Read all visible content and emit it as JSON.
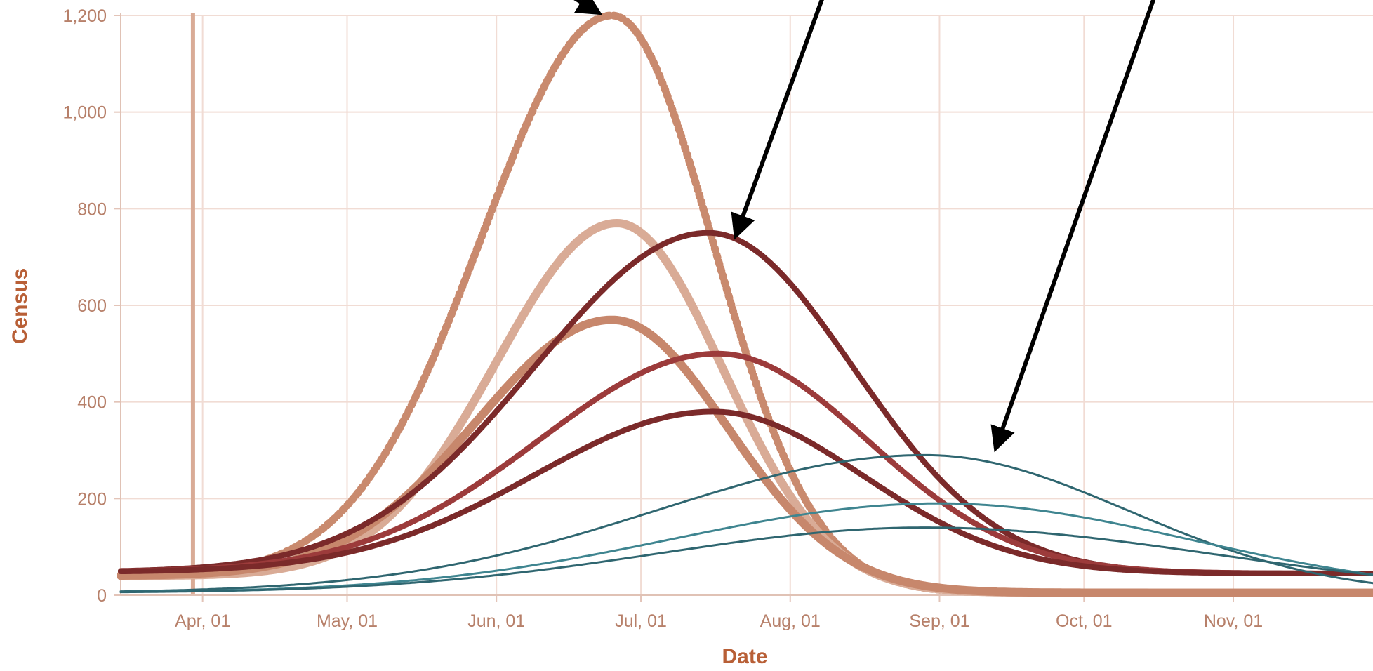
{
  "chart_data": {
    "type": "line",
    "xlabel": "Date",
    "ylabel": "Census",
    "xlim": [
      "2020-03-15",
      "2020-11-30"
    ],
    "ylim": [
      0,
      1200
    ],
    "yticks": [
      0,
      200,
      400,
      600,
      800,
      1000,
      1200
    ],
    "ytick_labels": [
      "0",
      "200",
      "400",
      "600",
      "800",
      "1,000",
      "1,200"
    ],
    "xticks": [
      "2020-04-01",
      "2020-05-01",
      "2020-06-01",
      "2020-07-01",
      "2020-08-01",
      "2020-09-01",
      "2020-10-01",
      "2020-11-01"
    ],
    "xtick_labels": [
      "Apr, 01",
      "May, 01",
      "Jun, 01",
      "Jul, 01",
      "Aug, 01",
      "Sep, 01",
      "Oct, 01",
      "Nov, 01"
    ],
    "grid": true,
    "marker_line_x": "2020-03-30",
    "series": [
      {
        "peak_date": "2020-06-25",
        "peak": 1200,
        "rise_days": 27,
        "fall_days": 21,
        "base": 5,
        "start": 40,
        "color": "#c98a6e",
        "style": "dotted"
      },
      {
        "peak_date": "2020-06-26",
        "peak": 770,
        "rise_days": 25,
        "fall_days": 22,
        "base": 5,
        "start": 40,
        "color": "#d9ab96",
        "style": "thick"
      },
      {
        "peak_date": "2020-06-25",
        "peak": 570,
        "rise_days": 28,
        "fall_days": 24,
        "base": 5,
        "start": 40,
        "color": "#c7876c",
        "style": "thick"
      },
      {
        "peak_date": "2020-07-15",
        "peak": 750,
        "rise_days": 36,
        "fall_days": 30,
        "base": 45,
        "start": 48,
        "color": "#7b2a2a",
        "style": "solid"
      },
      {
        "peak_date": "2020-07-17",
        "peak": 500,
        "rise_days": 37,
        "fall_days": 31,
        "base": 45,
        "start": 48,
        "color": "#9c3b3b",
        "style": "solid"
      },
      {
        "peak_date": "2020-07-16",
        "peak": 380,
        "rise_days": 37,
        "fall_days": 31,
        "base": 45,
        "start": 48,
        "color": "#7b2a2a",
        "style": "solid"
      },
      {
        "peak_date": "2020-08-29",
        "peak": 290,
        "rise_days": 55,
        "fall_days": 42,
        "base": 0,
        "start": 5,
        "color": "#2f6670",
        "style": "thin"
      },
      {
        "peak_date": "2020-09-01",
        "peak": 190,
        "rise_days": 55,
        "fall_days": 52,
        "base": 0,
        "start": 5,
        "color": "#3f8590",
        "style": "thin"
      },
      {
        "peak_date": "2020-08-29",
        "peak": 140,
        "rise_days": 55,
        "fall_days": 60,
        "base": 0,
        "start": 5,
        "color": "#2f6670",
        "style": "thin"
      }
    ],
    "annotation_arrows": [
      {
        "target_date": "2020-06-24",
        "target_value": 1195
      },
      {
        "target_date": "2020-07-20",
        "target_value": 725
      },
      {
        "target_date": "2020-09-12",
        "target_value": 285
      }
    ]
  }
}
